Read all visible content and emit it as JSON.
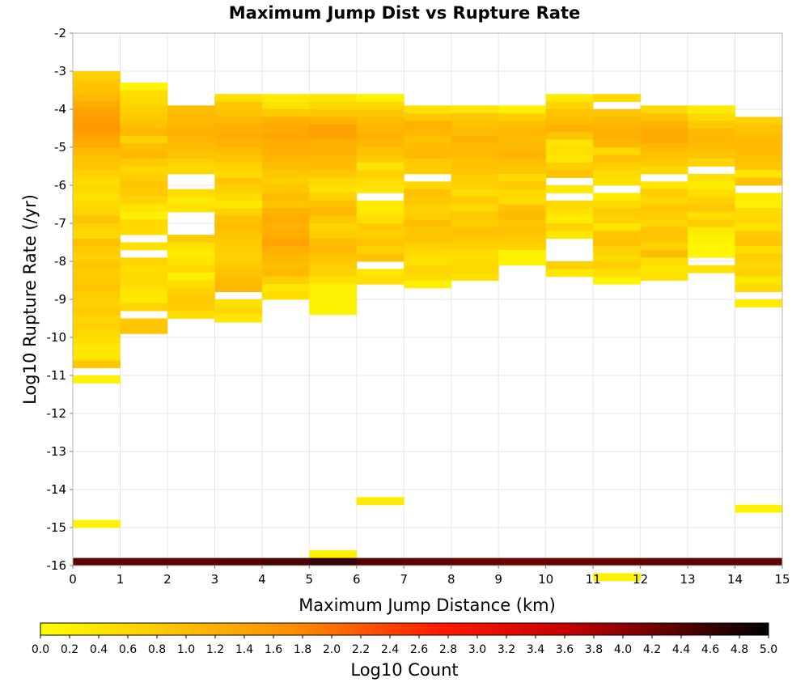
{
  "chart_data": {
    "type": "heatmap",
    "title": "Maximum Jump Dist vs Rupture Rate",
    "xlabel": "Maximum Jump Distance (km)",
    "ylabel": "Log10 Rupture Rate (/yr)",
    "xlim": [
      0,
      15
    ],
    "ylim": [
      -16,
      -2
    ],
    "x_ticks": [
      "0",
      "1",
      "2",
      "3",
      "4",
      "5",
      "6",
      "7",
      "8",
      "9",
      "10",
      "11",
      "12",
      "13",
      "14",
      "15"
    ],
    "y_ticks": [
      "-2",
      "-3",
      "-4",
      "-5",
      "-6",
      "-7",
      "-8",
      "-9",
      "-10",
      "-11",
      "-12",
      "-13",
      "-14",
      "-15",
      "-16"
    ],
    "grid": true,
    "x_bin_width": 1,
    "y_bin_height": 0.2,
    "colorbar": {
      "label": "Log10 Count",
      "range": [
        0,
        5
      ],
      "ticks": [
        "0.0",
        "0.2",
        "0.4",
        "0.6",
        "0.8",
        "1.0",
        "1.2",
        "1.4",
        "1.6",
        "1.8",
        "2.0",
        "2.2",
        "2.4",
        "2.6",
        "2.8",
        "3.0",
        "3.2",
        "3.4",
        "3.6",
        "3.8",
        "4.0",
        "4.2",
        "4.4",
        "4.6",
        "4.8",
        "5.0"
      ],
      "colors": [
        "#ffff00",
        "#ff8c00",
        "#ff1a00",
        "#c80000",
        "#000000"
      ]
    },
    "columns": [
      {
        "x": 0,
        "start": -3.0,
        "values": [
          0.7,
          0.85,
          0.95,
          1.1,
          1.3,
          1.45,
          1.5,
          1.55,
          1.4,
          1.3,
          1.1,
          0.95,
          0.85,
          0.7,
          0.55,
          0.6,
          0.45,
          0.55,
          0.65,
          0.9,
          0.7,
          0.6,
          0.95,
          0.8,
          0.7,
          0.85,
          0.75,
          0.8,
          0.9,
          0.75,
          0.7,
          0.8,
          0.65,
          0.7,
          0.6,
          0.45,
          0.35,
          0.4,
          0.85,
          0.0,
          0.2,
          0.0,
          0.0,
          0.0,
          0.0,
          0.0,
          0.0,
          0.0,
          0.0,
          0.0,
          0.0,
          0.0,
          0.0,
          0.0,
          0.0,
          0.0,
          0.0,
          0.0,
          0.0,
          0.2
        ]
      },
      {
        "x": 1,
        "start": -3.3,
        "values": [
          0.15,
          0.5,
          0.6,
          0.7,
          0.8,
          0.95,
          1.1,
          0.7,
          1.0,
          1.1,
          0.8,
          0.6,
          0.75,
          0.85,
          0.8,
          0.65,
          0.4,
          0.25,
          0.6,
          0.55,
          null,
          0.45,
          null,
          0.65,
          0.5,
          0.6,
          0.55,
          0.4,
          0.35,
          0.65,
          null,
          0.85,
          0.9
        ]
      },
      {
        "x": 2,
        "start": -3.9,
        "values": [
          1.0,
          1.05,
          1.1,
          1.15,
          1.1,
          1.0,
          0.9,
          0.7,
          0.6,
          null,
          null,
          0.55,
          0.3,
          0.45,
          null,
          null,
          null,
          0.8,
          0.45,
          0.3,
          0.4,
          0.55,
          0.25,
          0.5,
          0.7,
          0.8,
          0.75,
          0.5
        ]
      },
      {
        "x": 3,
        "start": -3.6,
        "values": [
          0.5,
          0.85,
          0.95,
          1.1,
          1.2,
          1.25,
          1.15,
          1.0,
          0.85,
          0.7,
          0.6,
          0.85,
          0.7,
          0.55,
          0.35,
          0.7,
          0.95,
          1.0,
          0.9,
          0.8,
          0.75,
          0.7,
          0.8,
          0.9,
          1.0,
          1.1,
          null,
          0.45,
          0.6,
          0.35
        ]
      },
      {
        "x": 4,
        "start": -3.6,
        "values": [
          0.3,
          0.45,
          0.8,
          1.2,
          1.3,
          1.35,
          1.25,
          1.2,
          1.1,
          1.0,
          0.85,
          0.75,
          0.85,
          1.0,
          0.9,
          1.15,
          1.25,
          1.2,
          1.25,
          1.4,
          1.2,
          1.1,
          1.0,
          1.05,
          0.7,
          0.4,
          0.5
        ]
      },
      {
        "x": 5,
        "start": -3.6,
        "values": [
          0.4,
          0.6,
          0.85,
          1.15,
          1.45,
          1.4,
          1.2,
          1.15,
          1.05,
          1.0,
          0.85,
          0.6,
          0.45,
          0.7,
          0.95,
          1.1,
          0.85,
          0.65,
          0.75,
          1.0,
          1.05,
          0.9,
          0.75,
          0.7,
          0.45,
          0.2,
          0.2,
          0.2,
          0.2
        ]
      },
      {
        "x": 6,
        "start": -3.6,
        "values": [
          0.2,
          0.6,
          0.85,
          1.0,
          1.1,
          1.2,
          1.1,
          0.95,
          0.8,
          0.4,
          0.7,
          0.55,
          0.4,
          null,
          0.3,
          0.35,
          0.5,
          0.8,
          0.75,
          0.9,
          0.7,
          0.95,
          null,
          0.4,
          0.5
        ]
      },
      {
        "x": 7,
        "start": -3.9,
        "values": [
          0.45,
          0.8,
          1.15,
          1.1,
          0.95,
          1.0,
          1.05,
          0.8,
          0.75,
          null,
          0.6,
          0.95,
          0.85,
          0.7,
          0.75,
          1.0,
          0.85,
          0.9,
          0.7,
          0.55,
          0.45,
          0.65,
          0.55,
          0.25
        ]
      },
      {
        "x": 8,
        "start": -3.9,
        "values": [
          0.4,
          0.85,
          0.95,
          1.0,
          1.15,
          1.05,
          1.0,
          0.95,
          0.9,
          0.75,
          0.7,
          0.55,
          0.8,
          0.6,
          0.85,
          0.75,
          0.95,
          0.85,
          0.7,
          0.5,
          0.55,
          0.6,
          0.45
        ]
      },
      {
        "x": 9,
        "start": -3.9,
        "values": [
          0.25,
          0.7,
          0.95,
          1.1,
          1.0,
          1.05,
          1.15,
          1.0,
          0.85,
          0.55,
          0.8,
          0.6,
          0.55,
          0.95,
          1.05,
          0.85,
          0.95,
          0.8,
          0.7,
          0.2,
          0.2
        ]
      },
      {
        "x": 10,
        "start": -3.6,
        "values": [
          0.3,
          0.65,
          0.9,
          1.0,
          1.15,
          0.9,
          0.4,
          0.5,
          0.35,
          0.75,
          0.9,
          null,
          0.35,
          null,
          0.6,
          0.45,
          0.3,
          0.65,
          0.4,
          null,
          null,
          null,
          0.7,
          0.35
        ]
      },
      {
        "x": 11,
        "start": -3.6,
        "values": [
          0.55,
          null,
          0.9,
          1.05,
          1.15,
          1.2,
          1.1,
          0.6,
          0.95,
          0.75,
          0.55,
          0.45,
          null,
          0.3,
          0.55,
          0.8,
          0.7,
          0.4,
          0.85,
          0.95,
          0.7,
          0.6,
          0.75,
          0.5,
          0.2,
          0.0,
          0.0,
          0.0,
          0.0,
          0.0,
          0.0,
          0.0,
          0.0,
          0.0,
          0.0,
          0.0,
          0.0,
          0.0,
          0.0,
          0.0,
          0.0,
          0.0,
          0.0,
          0.0,
          0.0,
          0.0,
          0.0,
          0.0,
          0.0,
          0.0,
          0.0,
          0.0,
          0.0,
          0.0,
          0.0,
          0.0,
          0.0,
          0.0,
          0.0,
          0.0,
          0.0,
          0.0,
          0.0,
          0.2
        ]
      },
      {
        "x": 12,
        "start": -3.9,
        "values": [
          0.6,
          0.9,
          1.15,
          1.3,
          1.3,
          1.1,
          0.95,
          0.85,
          0.6,
          null,
          0.4,
          0.75,
          0.6,
          0.85,
          0.75,
          0.65,
          0.9,
          0.85,
          0.65,
          1.0,
          0.55,
          0.4,
          0.45
        ]
      },
      {
        "x": 13,
        "start": -3.9,
        "values": [
          0.3,
          0.55,
          0.8,
          1.05,
          1.1,
          1.0,
          0.9,
          0.65,
          null,
          0.45,
          0.3,
          0.5,
          0.7,
          0.85,
          0.5,
          0.75,
          0.3,
          0.2,
          0.15,
          0.15,
          null,
          0.45
        ]
      },
      {
        "x": 14,
        "start": -4.2,
        "values": [
          0.7,
          0.9,
          1.0,
          1.05,
          1.0,
          0.95,
          0.9,
          0.4,
          0.95,
          null,
          0.3,
          0.25,
          0.55,
          0.6,
          0.45,
          0.8,
          0.9,
          0.5,
          0.75,
          0.6,
          0.7,
          0.35,
          0.55,
          null,
          0.3,
          0.0,
          0.0,
          0.0,
          0.0,
          0.0,
          0.0,
          0.0,
          0.0,
          0.0,
          0.0,
          0.0,
          0.0,
          0.0,
          0.0,
          0.0,
          0.0,
          0.0,
          0.0,
          0.0,
          0.0,
          0.0,
          0.0,
          0.0,
          0.0,
          0.0,
          0.0,
          0.2
        ]
      }
    ],
    "extra_cells": [
      {
        "x": 6,
        "y": -14.2,
        "value": 0.3
      },
      {
        "x": 5,
        "y": -15.6,
        "value": 0.2
      }
    ],
    "bottom_row": {
      "y": -15.8,
      "values": [
        4.35,
        4.35,
        4.35,
        4.4,
        4.5,
        4.65,
        4.4,
        4.35,
        4.3,
        4.25,
        4.3,
        4.3,
        4.35,
        4.35,
        4.35
      ]
    }
  }
}
